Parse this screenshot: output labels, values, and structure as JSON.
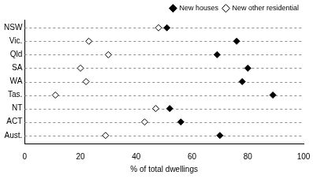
{
  "chart_data": {
    "type": "scatter",
    "categories": [
      "NSW",
      "Vic.",
      "Qld",
      "SA",
      "WA",
      "Tas.",
      "NT",
      "ACT",
      "Aust."
    ],
    "series": [
      {
        "name": "New houses",
        "color": "#000000",
        "marker": "diamond",
        "values": [
          51,
          76,
          69,
          80,
          78,
          89,
          52,
          56,
          70
        ]
      },
      {
        "name": "New other residential",
        "color": "#000000",
        "marker": "open diamond",
        "values": [
          48,
          23,
          30,
          20,
          22,
          11,
          47,
          43,
          29
        ]
      }
    ],
    "xlabel": "% of total dwellings",
    "xlim": [
      0,
      100
    ],
    "xticks": [
      0,
      20,
      40,
      60,
      80,
      100
    ],
    "orientation": "horizontal",
    "grid": true,
    "legend": "upper right"
  }
}
